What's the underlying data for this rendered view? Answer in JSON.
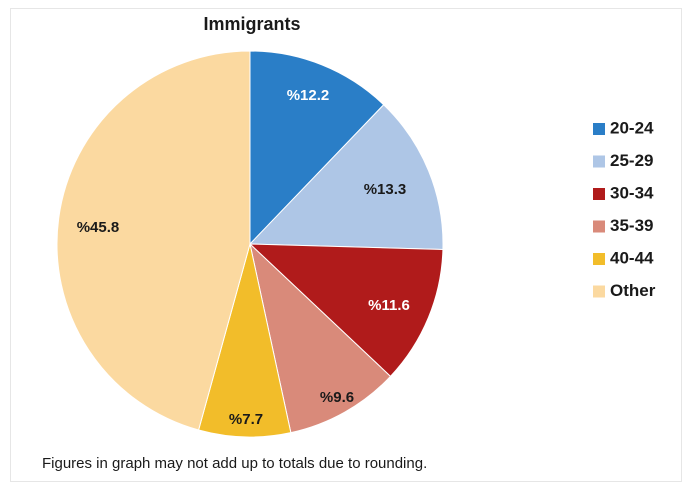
{
  "chart_data": {
    "type": "pie",
    "title": "Immigrants",
    "categories": [
      "20-24",
      "25-29",
      "30-34",
      "35-39",
      "40-44",
      "Other"
    ],
    "values": [
      12.2,
      13.3,
      11.6,
      9.6,
      7.7,
      45.8
    ],
    "labels": [
      "%12.2",
      "%13.3",
      "%11.6",
      "%9.6",
      "%7.7",
      "%45.8"
    ],
    "colors": [
      "#2a7ec7",
      "#aec6e6",
      "#b01b1b",
      "#d98a7a",
      "#f2bd2a",
      "#fbd9a0"
    ],
    "label_colors": [
      "#ffffff",
      "#1a1a1a",
      "#ffffff",
      "#1a1a1a",
      "#1a1a1a",
      "#1a1a1a"
    ],
    "start": "12 o'clock",
    "direction": "clockwise",
    "legend_position": "right"
  },
  "footnote": "Figures in graph may not add up to totals due to rounding."
}
